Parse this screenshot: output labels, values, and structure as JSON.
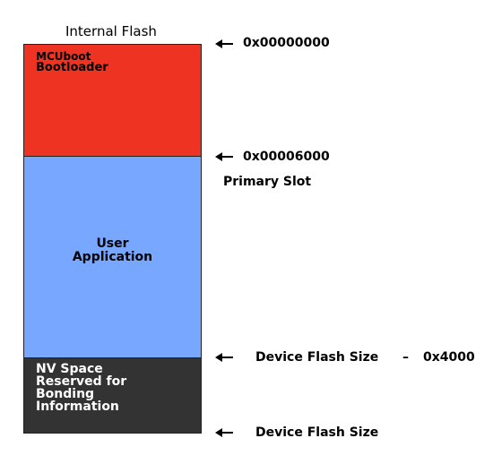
{
  "title": "Internal Flash",
  "regions": {
    "bootloader": {
      "line1": "MCUboot",
      "line2": "Bootloader",
      "color": "#ee3322"
    },
    "application": {
      "lines": [
        "User",
        "Application"
      ],
      "color": "#77a7ff"
    },
    "nv_space": {
      "lines": [
        "NV Space",
        "Reserved for",
        "Bonding",
        "Information"
      ],
      "color": "#333333"
    }
  },
  "markers": {
    "start_address": "0x00000000",
    "slot_address": "0x00006000",
    "slot_label": "Primary Slot",
    "nv_start_label": "Device Flash Size",
    "nv_minus": "–",
    "nv_offset": "0x4000",
    "end_label": "Device Flash Size"
  },
  "icons": {
    "arrow": "left-arrow-icon"
  }
}
